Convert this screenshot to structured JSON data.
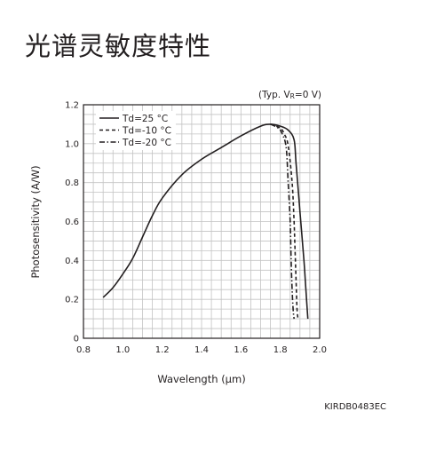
{
  "title": "光谱灵敏度特性",
  "chart_data": {
    "type": "line",
    "condition": "(Typ. VR=0 V)",
    "condition_parts": {
      "open": "(Typ. V",
      "sub": "R",
      "close": "=0 V)"
    },
    "xlabel": "Wavelength (μm)",
    "ylabel": "Photosensitivity (A/W)",
    "xlim": [
      0.8,
      2.0
    ],
    "ylim": [
      0,
      1.2
    ],
    "x_ticks": [
      "0.8",
      "1.0",
      "1.2",
      "1.4",
      "1.6",
      "1.8",
      "2.0"
    ],
    "y_ticks": [
      "0",
      "0.2",
      "0.4",
      "0.6",
      "0.8",
      "1.0",
      "1.2"
    ],
    "x_tick_values": [
      0.8,
      1.0,
      1.2,
      1.4,
      1.6,
      1.8,
      2.0
    ],
    "y_tick_values": [
      0,
      0.2,
      0.4,
      0.6,
      0.8,
      1.0,
      1.2
    ],
    "grid": true,
    "legend_position": "top-left",
    "series": [
      {
        "name": "Td=25 °C",
        "style": "solid",
        "points": [
          [
            0.9,
            0.21
          ],
          [
            0.95,
            0.26
          ],
          [
            1.0,
            0.33
          ],
          [
            1.05,
            0.41
          ],
          [
            1.1,
            0.52
          ],
          [
            1.15,
            0.63
          ],
          [
            1.2,
            0.72
          ],
          [
            1.3,
            0.84
          ],
          [
            1.4,
            0.92
          ],
          [
            1.5,
            0.98
          ],
          [
            1.6,
            1.04
          ],
          [
            1.7,
            1.09
          ],
          [
            1.75,
            1.1
          ],
          [
            1.8,
            1.09
          ],
          [
            1.84,
            1.07
          ],
          [
            1.87,
            1.02
          ],
          [
            1.88,
            0.9
          ],
          [
            1.9,
            0.65
          ],
          [
            1.92,
            0.4
          ],
          [
            1.93,
            0.25
          ],
          [
            1.94,
            0.1
          ]
        ]
      },
      {
        "name": "Td=-10 °C",
        "style": "dashed",
        "points": [
          [
            1.75,
            1.1
          ],
          [
            1.8,
            1.08
          ],
          [
            1.82,
            1.05
          ],
          [
            1.84,
            0.99
          ],
          [
            1.86,
            0.8
          ],
          [
            1.87,
            0.6
          ],
          [
            1.875,
            0.45
          ],
          [
            1.88,
            0.3
          ],
          [
            1.885,
            0.15
          ],
          [
            1.89,
            0.1
          ]
        ]
      },
      {
        "name": "Td=-20 °C",
        "style": "dashdot",
        "points": [
          [
            1.75,
            1.1
          ],
          [
            1.79,
            1.08
          ],
          [
            1.81,
            1.05
          ],
          [
            1.83,
            0.98
          ],
          [
            1.84,
            0.8
          ],
          [
            1.85,
            0.6
          ],
          [
            1.855,
            0.4
          ],
          [
            1.86,
            0.25
          ],
          [
            1.865,
            0.15
          ],
          [
            1.87,
            0.1
          ]
        ]
      }
    ]
  },
  "code": "KIRDB0483EC"
}
